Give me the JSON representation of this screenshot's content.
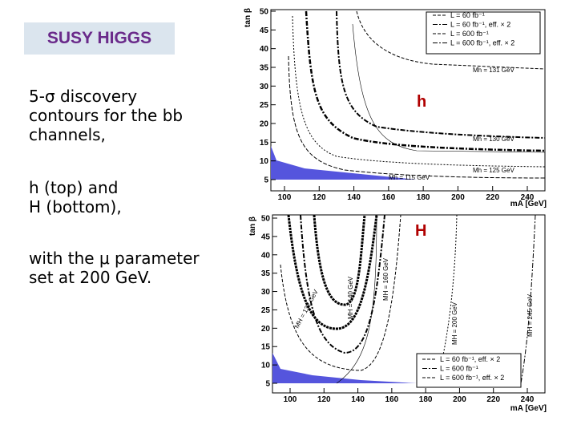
{
  "title": "SUSY HIGGS",
  "paragraphs": [
    [
      "5-σ discovery",
      "contours for the bb",
      "channels,"
    ],
    [
      "h (top) and",
      "H (bottom),"
    ],
    [
      "with the μ parameter",
      "set at 200 GeV."
    ]
  ],
  "plots": [
    {
      "label": "h",
      "y_label": "tan β",
      "x_label": "mA [GeV]",
      "yticks": [
        5,
        10,
        15,
        20,
        25,
        30,
        35,
        40,
        45,
        50
      ],
      "xticks": [
        100,
        120,
        140,
        160,
        180,
        200,
        220,
        240
      ],
      "legend": [
        "L = 60 fb⁻¹",
        "L = 60 fb⁻¹, eff. × 2",
        "L = 600 fb⁻¹",
        "L = 600 fb⁻¹, eff. × 2"
      ],
      "annotations": [
        "Mh = 131 GeV",
        "Mh = 130 GeV",
        "Mh = 125 GeV",
        "Mh = 115 GeV"
      ]
    },
    {
      "label": "H",
      "y_label": "tan β",
      "x_label": "mA [GeV]",
      "yticks": [
        5,
        10,
        15,
        20,
        25,
        30,
        35,
        40,
        45,
        50
      ],
      "xticks": [
        100,
        120,
        140,
        160,
        180,
        200,
        220,
        240
      ],
      "legend": [
        "L = 60 fb⁻¹, eff. × 2",
        "L = 600 fb⁻¹",
        "L = 600 fb⁻¹, eff. × 2"
      ],
      "annotations": [
        "MH = 132 GeV",
        "MH = 140 GeV",
        "MH = 160 GeV",
        "MH = 200 GeV",
        "MH = 245 GeV"
      ]
    }
  ]
}
